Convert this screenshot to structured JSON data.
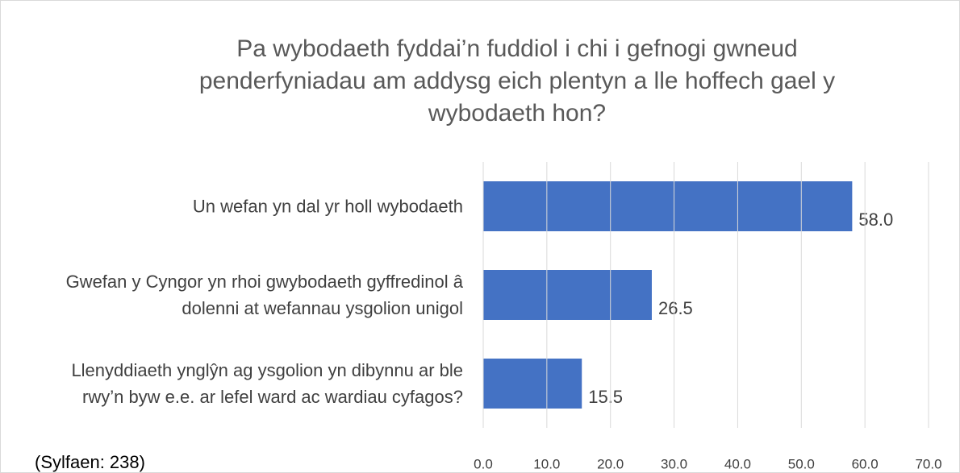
{
  "chart_data": {
    "type": "bar",
    "orientation": "horizontal",
    "title": "Pa wybodaeth fyddai’n fuddiol i chi i gefnogi gwneud penderfyniadau am addysg eich plentyn a lle hoffech gael y wybodaeth hon?",
    "note": "(Sylfaen: 238)",
    "categories": [
      "Un wefan yn dal yr holl wybodaeth",
      "Gwefan y Cyngor yn rhoi gwybodaeth gyffredinol â dolenni at wefannau ysgolion unigol",
      "Llenyddiaeth ynglŷn ag ysgolion yn dibynnu ar ble rwy’n byw e.e. ar lefel ward ac wardiau cyfagos?"
    ],
    "values": [
      58.0,
      26.5,
      15.5
    ],
    "value_labels": [
      "58.0",
      "26.5",
      "15.5"
    ],
    "color": "#4472c4",
    "xlim": [
      0,
      70
    ],
    "xticks": [
      {
        "value": 0,
        "label": "0.0"
      },
      {
        "value": 10,
        "label": "10.0"
      },
      {
        "value": 20,
        "label": "20.0"
      },
      {
        "value": 30,
        "label": "30.0"
      },
      {
        "value": 40,
        "label": "40.0"
      },
      {
        "value": 50,
        "label": "50.0"
      },
      {
        "value": 60,
        "label": "60.0"
      },
      {
        "value": 70,
        "label": "70.0"
      }
    ],
    "grid": true
  }
}
